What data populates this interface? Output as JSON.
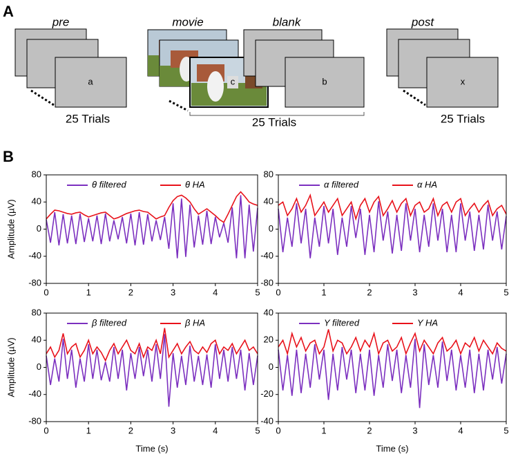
{
  "panel_labels": [
    "A",
    "B"
  ],
  "panel_a": {
    "pre": {
      "title": "pre",
      "letter": "a",
      "trials": "25 Trials"
    },
    "movie": {
      "title": "movie",
      "letter": "c"
    },
    "blank": {
      "title": "blank",
      "letter": "b",
      "trials": "25 Trials"
    },
    "post": {
      "title": "post",
      "letter": "x",
      "trials": "25 Trials"
    }
  },
  "chart_data": [
    {
      "type": "line",
      "ylabel": "Amplitude (µV)",
      "legend": "top",
      "x": [
        0,
        0.1,
        0.2,
        0.3,
        0.4,
        0.5,
        0.6,
        0.7,
        0.8,
        0.9,
        1,
        1.1,
        1.2,
        1.3,
        1.4,
        1.5,
        1.6,
        1.7,
        1.8,
        1.9,
        2,
        2.1,
        2.2,
        2.3,
        2.4,
        2.5,
        2.6,
        2.7,
        2.8,
        2.9,
        3,
        3.1,
        3.2,
        3.3,
        3.4,
        3.5,
        3.6,
        3.7,
        3.8,
        3.9,
        4,
        4.1,
        4.2,
        4.3,
        4.4,
        4.5,
        4.6,
        4.7,
        4.8,
        4.9,
        5
      ],
      "xlim": [
        0,
        5
      ],
      "xticks": [
        0,
        1,
        2,
        3,
        4,
        5
      ],
      "ylim": [
        -80,
        80
      ],
      "yticks": [
        -80,
        -40,
        0,
        40,
        80
      ],
      "series": [
        {
          "name": "θ filtered",
          "color": "#7b2fbf",
          "values": [
            14,
            -20,
            25,
            -24,
            22,
            -21,
            20,
            -22,
            23,
            -19,
            16,
            -18,
            20,
            -22,
            23,
            -18,
            13,
            -15,
            18,
            -21,
            23,
            -24,
            25,
            -23,
            22,
            -18,
            13,
            -16,
            18,
            -29,
            38,
            -43,
            45,
            -41,
            36,
            -27,
            20,
            -23,
            27,
            -22,
            18,
            -12,
            9,
            -20,
            32,
            -43,
            50,
            -43,
            36,
            -33,
            31
          ]
        },
        {
          "name": "θ HA",
          "color": "#e8111a",
          "values": [
            15,
            22,
            28,
            27,
            25,
            23,
            22,
            24,
            25,
            21,
            18,
            20,
            22,
            24,
            25,
            20,
            15,
            17,
            20,
            23,
            25,
            27,
            28,
            26,
            25,
            20,
            15,
            18,
            20,
            32,
            42,
            48,
            50,
            46,
            40,
            30,
            22,
            26,
            30,
            25,
            20,
            14,
            10,
            22,
            35,
            48,
            55,
            48,
            40,
            37,
            35
          ]
        }
      ]
    },
    {
      "type": "line",
      "legend": "top",
      "x": [
        0,
        0.1,
        0.2,
        0.3,
        0.4,
        0.5,
        0.6,
        0.7,
        0.8,
        0.9,
        1,
        1.1,
        1.2,
        1.3,
        1.4,
        1.5,
        1.6,
        1.7,
        1.8,
        1.9,
        2,
        2.1,
        2.2,
        2.3,
        2.4,
        2.5,
        2.6,
        2.7,
        2.8,
        2.9,
        3,
        3.1,
        3.2,
        3.3,
        3.4,
        3.5,
        3.6,
        3.7,
        3.8,
        3.9,
        4,
        4.1,
        4.2,
        4.3,
        4.4,
        4.5,
        4.6,
        4.7,
        4.8,
        4.9,
        5
      ],
      "xlim": [
        0,
        5
      ],
      "xticks": [
        0,
        1,
        2,
        3,
        4,
        5
      ],
      "ylim": [
        -80,
        80
      ],
      "yticks": [
        -80,
        -40,
        0,
        40,
        80
      ],
      "series": [
        {
          "name": "α filtered",
          "color": "#7b2fbf",
          "values": [
            30,
            -34,
            17,
            -26,
            38,
            -21,
            30,
            -43,
            17,
            -26,
            34,
            -21,
            30,
            -38,
            17,
            -26,
            34,
            -13,
            30,
            -38,
            21,
            -34,
            41,
            -17,
            26,
            -36,
            21,
            -32,
            38,
            -17,
            30,
            -34,
            21,
            -26,
            38,
            -17,
            30,
            -34,
            21,
            -34,
            38,
            -17,
            26,
            -32,
            21,
            -30,
            36,
            -17,
            26,
            -30,
            19
          ]
        },
        {
          "name": "α HA",
          "color": "#e8111a",
          "values": [
            35,
            40,
            20,
            30,
            45,
            25,
            35,
            50,
            20,
            30,
            40,
            25,
            35,
            45,
            20,
            30,
            40,
            15,
            35,
            45,
            25,
            40,
            48,
            20,
            30,
            42,
            25,
            38,
            45,
            20,
            35,
            40,
            25,
            30,
            45,
            20,
            35,
            40,
            25,
            40,
            45,
            20,
            30,
            38,
            25,
            35,
            42,
            20,
            30,
            35,
            22
          ]
        }
      ]
    },
    {
      "type": "line",
      "ylabel": "Amplitude (µV)",
      "xlabel": "Time (s)",
      "legend": "top",
      "x": [
        0,
        0.1,
        0.2,
        0.3,
        0.4,
        0.5,
        0.6,
        0.7,
        0.8,
        0.9,
        1,
        1.1,
        1.2,
        1.3,
        1.4,
        1.5,
        1.6,
        1.7,
        1.8,
        1.9,
        2,
        2.1,
        2.2,
        2.3,
        2.4,
        2.5,
        2.6,
        2.7,
        2.8,
        2.9,
        3,
        3.1,
        3.2,
        3.3,
        3.4,
        3.5,
        3.6,
        3.7,
        3.8,
        3.9,
        4,
        4.1,
        4.2,
        4.3,
        4.4,
        4.5,
        4.6,
        4.7,
        4.8,
        4.9,
        5
      ],
      "xlim": [
        0,
        5
      ],
      "xticks": [
        0,
        1,
        2,
        3,
        4,
        5
      ],
      "ylim": [
        -80,
        80
      ],
      "yticks": [
        -80,
        -40,
        0,
        40,
        80
      ],
      "series": [
        {
          "name": "β filtered",
          "color": "#7b2fbf",
          "values": [
            17,
            -26,
            13,
            -21,
            42,
            -17,
            26,
            -30,
            13,
            -21,
            34,
            -17,
            26,
            -19,
            8,
            -21,
            30,
            -17,
            26,
            -34,
            21,
            -17,
            30,
            -13,
            26,
            -21,
            34,
            -17,
            49,
            -58,
            21,
            -30,
            17,
            -26,
            32,
            -21,
            17,
            -26,
            19,
            -30,
            34,
            -17,
            26,
            -21,
            30,
            -17,
            26,
            -34,
            21,
            -26,
            17
          ]
        },
        {
          "name": "β HA",
          "color": "#e8111a",
          "values": [
            20,
            30,
            15,
            25,
            50,
            20,
            30,
            35,
            15,
            25,
            40,
            20,
            30,
            22,
            10,
            25,
            35,
            20,
            30,
            40,
            25,
            20,
            35,
            15,
            30,
            25,
            40,
            20,
            58,
            15,
            25,
            35,
            20,
            30,
            38,
            25,
            20,
            30,
            22,
            35,
            40,
            20,
            30,
            25,
            35,
            20,
            30,
            40,
            25,
            30,
            20
          ]
        }
      ]
    },
    {
      "type": "line",
      "xlabel": "Time (s)",
      "legend": "top",
      "x": [
        0,
        0.1,
        0.2,
        0.3,
        0.4,
        0.5,
        0.6,
        0.7,
        0.8,
        0.9,
        1,
        1.1,
        1.2,
        1.3,
        1.4,
        1.5,
        1.6,
        1.7,
        1.8,
        1.9,
        2,
        2.1,
        2.2,
        2.3,
        2.4,
        2.5,
        2.6,
        2.7,
        2.8,
        2.9,
        3,
        3.1,
        3.2,
        3.3,
        3.4,
        3.5,
        3.6,
        3.7,
        3.8,
        3.9,
        4,
        4.1,
        4.2,
        4.3,
        4.4,
        4.5,
        4.6,
        4.7,
        4.8,
        4.9,
        5
      ],
      "xlim": [
        0,
        5
      ],
      "xticks": [
        0,
        1,
        2,
        3,
        4,
        5
      ],
      "ylim": [
        -40,
        40
      ],
      "yticks": [
        -40,
        -20,
        0,
        20,
        40
      ],
      "series": [
        {
          "name": "Y filtered",
          "color": "#7b2fbf",
          "values": [
            13,
            -17,
            9,
            -21,
            13,
            -19,
            10,
            -15,
            17,
            -9,
            13,
            -24,
            10,
            -17,
            15,
            -9,
            13,
            -19,
            10,
            -17,
            13,
            -21,
            9,
            -15,
            17,
            -10,
            13,
            -19,
            9,
            -15,
            21,
            -30,
            17,
            -13,
            9,
            -15,
            19,
            -10,
            13,
            -17,
            9,
            -15,
            13,
            -19,
            10,
            -17,
            13,
            -9,
            15,
            -12,
            10
          ]
        },
        {
          "name": "Y HA",
          "color": "#e8111a",
          "values": [
            15,
            20,
            10,
            25,
            15,
            22,
            12,
            18,
            20,
            10,
            15,
            28,
            12,
            20,
            18,
            10,
            15,
            22,
            12,
            20,
            15,
            25,
            10,
            18,
            20,
            12,
            15,
            22,
            10,
            18,
            25,
            12,
            20,
            15,
            10,
            18,
            22,
            12,
            15,
            20,
            10,
            18,
            15,
            22,
            12,
            20,
            15,
            10,
            18,
            14,
            12
          ]
        }
      ]
    }
  ]
}
